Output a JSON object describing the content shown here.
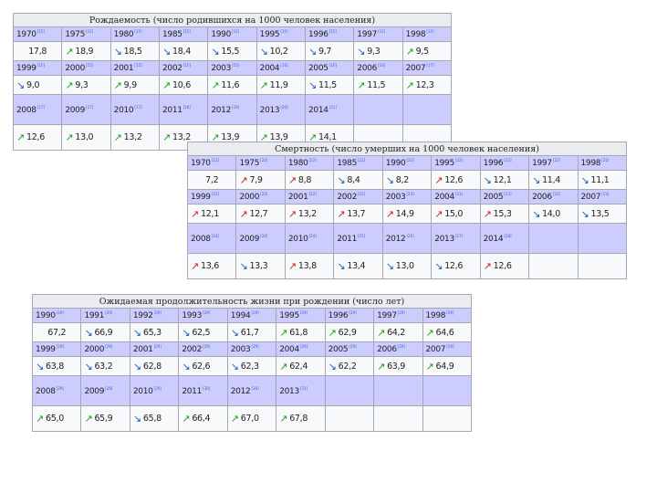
{
  "birth": {
    "title": "Рождаемость (число родившихся на 1000 человек населения)",
    "rows": [
      {
        "years": [
          "1970",
          "1975",
          "1980",
          "1985",
          "1990",
          "1995",
          "1996",
          "1997",
          "1998"
        ],
        "refs": [
          "[15]",
          "[15]",
          "[15]",
          "[15]",
          "[15]",
          "[15]",
          "[15]",
          "[15]",
          "[15]"
        ],
        "values": [
          {
            "v": "17,8",
            "a": ""
          },
          {
            "v": "18,9",
            "a": "up"
          },
          {
            "v": "18,5",
            "a": "down"
          },
          {
            "v": "18,4",
            "a": "down"
          },
          {
            "v": "15,5",
            "a": "down"
          },
          {
            "v": "10,2",
            "a": "down"
          },
          {
            "v": "9,7",
            "a": "down"
          },
          {
            "v": "9,3",
            "a": "down"
          },
          {
            "v": "9,5",
            "a": "up"
          }
        ]
      },
      {
        "years": [
          "1999",
          "2000",
          "2001",
          "2002",
          "2003",
          "2004",
          "2005",
          "2006",
          "2007"
        ],
        "refs": [
          "[15]",
          "[15]",
          "[15]",
          "[15]",
          "[15]",
          "[16]",
          "[16]",
          "[16]",
          "[17]"
        ],
        "values": [
          {
            "v": "9,0",
            "a": "down"
          },
          {
            "v": "9,3",
            "a": "up"
          },
          {
            "v": "9,9",
            "a": "up"
          },
          {
            "v": "10,6",
            "a": "up"
          },
          {
            "v": "11,6",
            "a": "up"
          },
          {
            "v": "11,9",
            "a": "up"
          },
          {
            "v": "11,5",
            "a": "down"
          },
          {
            "v": "11,5",
            "a": "up"
          },
          {
            "v": "12,3",
            "a": "up"
          }
        ]
      },
      {
        "years": [
          "2008",
          "2009",
          "2010",
          "2011",
          "2012",
          "2013",
          "2014"
        ],
        "refs": [
          "[17]",
          "[17]",
          "[17]",
          "[18]",
          "[19]",
          "[20]",
          "[21]"
        ],
        "values": [
          {
            "v": "12,6",
            "a": "up"
          },
          {
            "v": "13,0",
            "a": "up"
          },
          {
            "v": "13,2",
            "a": "up"
          },
          {
            "v": "13,2",
            "a": "up"
          },
          {
            "v": "13,9",
            "a": "up"
          },
          {
            "v": "13,9",
            "a": "up"
          },
          {
            "v": "14,1",
            "a": "up"
          }
        ]
      }
    ]
  },
  "death": {
    "title": "Смертность (число умерших на 1000 человек населения)",
    "rows": [
      {
        "years": [
          "1970",
          "1975",
          "1980",
          "1985",
          "1990",
          "1995",
          "1996",
          "1997",
          "1998"
        ],
        "refs": [
          "[22]",
          "[22]",
          "[22]",
          "[22]",
          "[22]",
          "[22]",
          "[22]",
          "[22]",
          "[22]"
        ],
        "values": [
          {
            "v": "7,2",
            "a": ""
          },
          {
            "v": "7,9",
            "a": "upbad"
          },
          {
            "v": "8,8",
            "a": "upbad"
          },
          {
            "v": "8,4",
            "a": "down"
          },
          {
            "v": "8,2",
            "a": "down"
          },
          {
            "v": "12,6",
            "a": "upbad"
          },
          {
            "v": "12,1",
            "a": "down"
          },
          {
            "v": "11,4",
            "a": "down"
          },
          {
            "v": "11,1",
            "a": "down"
          }
        ]
      },
      {
        "years": [
          "1999",
          "2000",
          "2001",
          "2002",
          "2003",
          "2004",
          "2005",
          "2006",
          "2007"
        ],
        "refs": [
          "[22]",
          "[22]",
          "[22]",
          "[22]",
          "[23]",
          "[23]",
          "[23]",
          "[23]",
          "[23]"
        ],
        "values": [
          {
            "v": "12,1",
            "a": "upbad"
          },
          {
            "v": "12,7",
            "a": "upbad"
          },
          {
            "v": "13,2",
            "a": "upbad"
          },
          {
            "v": "13,7",
            "a": "upbad"
          },
          {
            "v": "14,9",
            "a": "upbad"
          },
          {
            "v": "15,0",
            "a": "upbad"
          },
          {
            "v": "15,3",
            "a": "upbad"
          },
          {
            "v": "14,0",
            "a": "down"
          },
          {
            "v": "13,5",
            "a": "down"
          }
        ]
      },
      {
        "years": [
          "2008",
          "2009",
          "2010",
          "2011",
          "2012",
          "2013",
          "2014"
        ],
        "refs": [
          "[24]",
          "[24]",
          "[24]",
          "[25]",
          "[26]",
          "[27]",
          "[28]"
        ],
        "values": [
          {
            "v": "13,6",
            "a": "upbad"
          },
          {
            "v": "13,3",
            "a": "down"
          },
          {
            "v": "13,8",
            "a": "upbad"
          },
          {
            "v": "13,4",
            "a": "down"
          },
          {
            "v": "13,0",
            "a": "down"
          },
          {
            "v": "12,6",
            "a": "down"
          },
          {
            "v": "12,6",
            "a": "upbad"
          }
        ]
      }
    ]
  },
  "life": {
    "title": "Ожидаемая продолжительность жизни при рождении (число лет)",
    "rows": [
      {
        "years": [
          "1990",
          "1991",
          "1992",
          "1993",
          "1994",
          "1995",
          "1996",
          "1997",
          "1998"
        ],
        "refs": [
          "[29]",
          "[29]",
          "[29]",
          "[29]",
          "[29]",
          "[29]",
          "[29]",
          "[29]",
          "[29]"
        ],
        "values": [
          {
            "v": "67,2",
            "a": ""
          },
          {
            "v": "66,9",
            "a": "down"
          },
          {
            "v": "65,3",
            "a": "down"
          },
          {
            "v": "62,5",
            "a": "down"
          },
          {
            "v": "61,7",
            "a": "down"
          },
          {
            "v": "61,8",
            "a": "up"
          },
          {
            "v": "62,9",
            "a": "up"
          },
          {
            "v": "64,2",
            "a": "up"
          },
          {
            "v": "64,6",
            "a": "up"
          }
        ]
      },
      {
        "years": [
          "1999",
          "2000",
          "2001",
          "2002",
          "2003",
          "2004",
          "2005",
          "2006",
          "2007"
        ],
        "refs": [
          "[29]",
          "[29]",
          "[29]",
          "[29]",
          "[29]",
          "[29]",
          "[29]",
          "[29]",
          "[29]"
        ],
        "values": [
          {
            "v": "63,8",
            "a": "down"
          },
          {
            "v": "63,2",
            "a": "down"
          },
          {
            "v": "62,8",
            "a": "down"
          },
          {
            "v": "62,6",
            "a": "down"
          },
          {
            "v": "62,3",
            "a": "down"
          },
          {
            "v": "62,4",
            "a": "up"
          },
          {
            "v": "62,2",
            "a": "down"
          },
          {
            "v": "63,9",
            "a": "up"
          },
          {
            "v": "64,9",
            "a": "up"
          }
        ]
      },
      {
        "years": [
          "2008",
          "2009",
          "2010",
          "2011",
          "2012",
          "2013"
        ],
        "refs": [
          "[29]",
          "[29]",
          "[29]",
          "[30]",
          "[30]",
          "[31]"
        ],
        "values": [
          {
            "v": "65,0",
            "a": "up"
          },
          {
            "v": "65,9",
            "a": "up"
          },
          {
            "v": "65,8",
            "a": "down"
          },
          {
            "v": "66,4",
            "a": "up"
          },
          {
            "v": "67,0",
            "a": "up"
          },
          {
            "v": "67,8",
            "a": "up"
          }
        ]
      }
    ]
  },
  "arrow_glyphs": {
    "up": "↗",
    "upbad": "↗",
    "down": "↘",
    "downgood": "↘"
  },
  "colors": {
    "header_bg": "#ccccff",
    "cell_bg": "#f8f9fa",
    "border": "#a2a9b1",
    "arrow_green": "#20a020",
    "arrow_red": "#d02020",
    "arrow_blue": "#2060b0"
  }
}
